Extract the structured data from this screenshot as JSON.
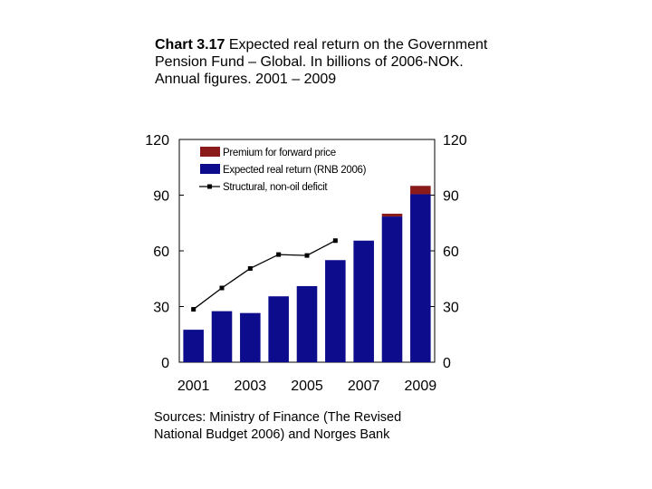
{
  "title": {
    "number": "Chart 3.17",
    "text": "Expected real return on the Government Pension Fund – Global. In billions of 2006-NOK. Annual figures. 2001 – 2009"
  },
  "source": "Sources: Ministry of Finance (The Revised National Budget 2006) and Norges Bank",
  "chart_data": {
    "type": "bar",
    "x": [
      2001,
      2002,
      2003,
      2004,
      2005,
      2006,
      2007,
      2008,
      2009
    ],
    "x_tick_labels": [
      "2001",
      "2003",
      "2005",
      "2007",
      "2009"
    ],
    "y_tick_labels": [
      "0",
      "30",
      "60",
      "90",
      "120"
    ],
    "ylim": [
      0,
      120
    ],
    "stacked": true,
    "series": [
      {
        "name": "Premium for forward price",
        "kind": "bar",
        "color": "#8b1a1a",
        "values": [
          0,
          0,
          0,
          0,
          0,
          0,
          0,
          1.5,
          4.5
        ]
      },
      {
        "name": "Expected real return (RNB 2006)",
        "kind": "bar",
        "color": "#0c0c8c",
        "values": [
          17.5,
          27.5,
          26.5,
          35.5,
          41,
          55,
          65.5,
          78.5,
          90.5
        ]
      },
      {
        "name": "Structural, non-oil deficit",
        "kind": "line",
        "color": "#000000",
        "values": [
          28.5,
          40,
          50.5,
          58,
          57.5,
          65.5,
          null,
          null,
          null
        ]
      }
    ],
    "legend": "top-left inside plot",
    "grid": false,
    "dual_y_axis": true
  }
}
